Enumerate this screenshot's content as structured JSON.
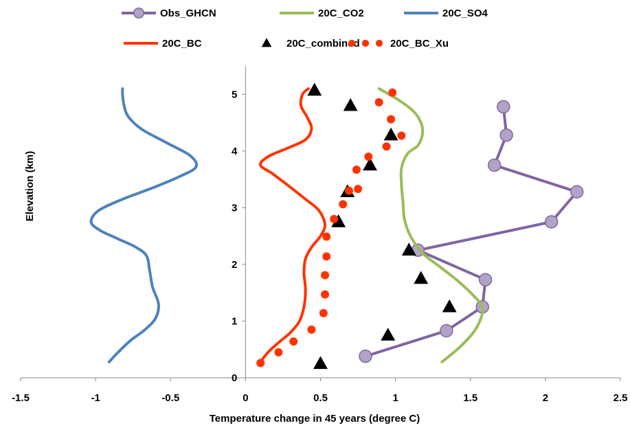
{
  "chart_data": {
    "type": "line",
    "xlabel": "Temperature change in 45 years (degree C)",
    "ylabel": "Elevation (km)",
    "xlim": [
      -1.5,
      2.5
    ],
    "ylim": [
      0,
      5.5
    ],
    "xticks": [
      "-1.5",
      "-1",
      "-0.5",
      "0",
      "0.5",
      "1",
      "1.5",
      "2",
      "2.5"
    ],
    "yticks": [
      "0",
      "1",
      "2",
      "3",
      "4",
      "5"
    ],
    "legend_position": "top",
    "series": [
      {
        "name": "Obs_GHCN",
        "style": "line-marker",
        "color": "#8064A2",
        "marker_color": "#B3A2C7",
        "points": [
          [
            0.8,
            0.38
          ],
          [
            1.34,
            0.83
          ],
          [
            1.58,
            1.25
          ],
          [
            1.6,
            1.73
          ],
          [
            1.15,
            2.25
          ],
          [
            2.04,
            2.75
          ],
          [
            2.21,
            3.28
          ],
          [
            1.66,
            3.75
          ],
          [
            1.74,
            4.28
          ],
          [
            1.72,
            4.78
          ]
        ]
      },
      {
        "name": "20C_CO2",
        "style": "line",
        "color": "#9BBB59",
        "points": [
          [
            1.31,
            0.28
          ],
          [
            1.42,
            0.52
          ],
          [
            1.52,
            0.8
          ],
          [
            1.57,
            1.05
          ],
          [
            1.58,
            1.25
          ],
          [
            1.52,
            1.45
          ],
          [
            1.42,
            1.7
          ],
          [
            1.3,
            1.95
          ],
          [
            1.18,
            2.2
          ],
          [
            1.1,
            2.5
          ],
          [
            1.06,
            2.8
          ],
          [
            1.05,
            3.1
          ],
          [
            1.04,
            3.4
          ],
          [
            1.04,
            3.7
          ],
          [
            1.08,
            3.95
          ],
          [
            1.15,
            4.1
          ],
          [
            1.18,
            4.3
          ],
          [
            1.17,
            4.5
          ],
          [
            1.12,
            4.7
          ],
          [
            1.02,
            4.9
          ],
          [
            0.89,
            5.1
          ]
        ]
      },
      {
        "name": "20C_SO4",
        "style": "line",
        "color": "#4F81BD",
        "points": [
          [
            -0.91,
            0.28
          ],
          [
            -0.85,
            0.45
          ],
          [
            -0.77,
            0.65
          ],
          [
            -0.67,
            0.85
          ],
          [
            -0.6,
            1.05
          ],
          [
            -0.58,
            1.3
          ],
          [
            -0.62,
            1.6
          ],
          [
            -0.64,
            1.9
          ],
          [
            -0.66,
            2.15
          ],
          [
            -0.73,
            2.3
          ],
          [
            -0.85,
            2.45
          ],
          [
            -0.97,
            2.6
          ],
          [
            -1.03,
            2.75
          ],
          [
            -0.98,
            2.95
          ],
          [
            -0.82,
            3.15
          ],
          [
            -0.62,
            3.35
          ],
          [
            -0.44,
            3.55
          ],
          [
            -0.33,
            3.72
          ],
          [
            -0.37,
            3.92
          ],
          [
            -0.53,
            4.15
          ],
          [
            -0.69,
            4.38
          ],
          [
            -0.78,
            4.6
          ],
          [
            -0.81,
            4.8
          ],
          [
            -0.82,
            5.0
          ],
          [
            -0.82,
            5.1
          ]
        ]
      },
      {
        "name": "20C_BC",
        "style": "line",
        "color": "#FF3300",
        "points": [
          [
            0.1,
            0.28
          ],
          [
            0.15,
            0.45
          ],
          [
            0.22,
            0.62
          ],
          [
            0.3,
            0.8
          ],
          [
            0.36,
            1.0
          ],
          [
            0.39,
            1.25
          ],
          [
            0.4,
            1.55
          ],
          [
            0.39,
            1.85
          ],
          [
            0.4,
            2.1
          ],
          [
            0.44,
            2.3
          ],
          [
            0.5,
            2.5
          ],
          [
            0.53,
            2.7
          ],
          [
            0.49,
            2.95
          ],
          [
            0.4,
            3.15
          ],
          [
            0.28,
            3.4
          ],
          [
            0.18,
            3.6
          ],
          [
            0.1,
            3.75
          ],
          [
            0.15,
            3.9
          ],
          [
            0.28,
            4.05
          ],
          [
            0.4,
            4.2
          ],
          [
            0.44,
            4.4
          ],
          [
            0.41,
            4.6
          ],
          [
            0.37,
            4.8
          ],
          [
            0.38,
            5.0
          ],
          [
            0.42,
            5.1
          ]
        ]
      },
      {
        "name": "20C_combined",
        "style": "marker-triangle",
        "color": "#000000",
        "points": [
          [
            0.5,
            0.25
          ],
          [
            0.95,
            0.75
          ],
          [
            1.36,
            1.25
          ],
          [
            1.17,
            1.75
          ],
          [
            1.09,
            2.25
          ],
          [
            0.62,
            2.75
          ],
          [
            0.68,
            3.28
          ],
          [
            0.83,
            3.75
          ],
          [
            0.97,
            4.28
          ],
          [
            0.7,
            4.8
          ],
          [
            0.46,
            5.07
          ]
        ]
      },
      {
        "name": "20C_BC_Xu",
        "style": "marker-dot",
        "color": "#FF3300",
        "points": [
          [
            0.1,
            0.26
          ],
          [
            0.22,
            0.45
          ],
          [
            0.32,
            0.64
          ],
          [
            0.44,
            0.85
          ],
          [
            0.52,
            1.14
          ],
          [
            0.53,
            1.47
          ],
          [
            0.53,
            1.81
          ],
          [
            0.54,
            2.14
          ],
          [
            0.54,
            2.49
          ],
          [
            0.59,
            2.8
          ],
          [
            0.65,
            3.06
          ],
          [
            0.69,
            3.3
          ],
          [
            0.75,
            3.33
          ],
          [
            0.74,
            3.67
          ],
          [
            0.82,
            3.9
          ],
          [
            0.94,
            4.08
          ],
          [
            1.04,
            4.27
          ],
          [
            0.97,
            4.56
          ],
          [
            0.89,
            4.86
          ],
          [
            0.98,
            5.03
          ]
        ]
      }
    ]
  }
}
